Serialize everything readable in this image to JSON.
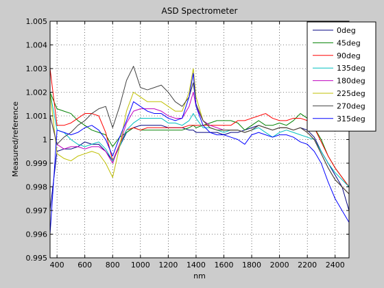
{
  "chart_data": {
    "type": "line",
    "title": "ASD Spectrometer",
    "xlabel": "nm",
    "ylabel": "Measured/reference",
    "xlim": [
      350,
      2500
    ],
    "ylim": [
      0.995,
      1.005
    ],
    "grid": true,
    "grid_style": "dotted",
    "legend_position": "top-right",
    "x_ticks": [
      400,
      600,
      800,
      1000,
      1200,
      1400,
      1600,
      1800,
      2000,
      2200,
      2400
    ],
    "y_ticks": [
      0.995,
      0.996,
      0.997,
      0.998,
      0.999,
      1,
      1.001,
      1.002,
      1.003,
      1.004,
      1.005
    ],
    "y_tick_labels": [
      "0.995",
      "0.996",
      "0.997",
      "0.998",
      "0.999",
      "1",
      "1.001",
      "1.002",
      "1.003",
      "1.004",
      "1.005"
    ],
    "series": [
      {
        "name": "0deg",
        "color": "#000080",
        "x": [
          350,
          400,
          450,
          500,
          550,
          600,
          650,
          700,
          750,
          800,
          850,
          900,
          950,
          1000,
          1050,
          1100,
          1150,
          1200,
          1250,
          1300,
          1350,
          1380,
          1400,
          1450,
          1500,
          1550,
          1600,
          1650,
          1700,
          1750,
          1800,
          1850,
          1900,
          1950,
          2000,
          2050,
          2100,
          2150,
          2200,
          2250,
          2300,
          2350,
          2400,
          2450,
          2500
        ],
        "values": [
          0.997,
          0.9995,
          0.9996,
          0.9996,
          0.9997,
          0.9999,
          0.9998,
          0.9998,
          0.9995,
          0.9991,
          0.9997,
          1.0003,
          1.0005,
          1.0006,
          1.0006,
          1.0006,
          1.0006,
          1.0005,
          1.0005,
          1.0005,
          1.0004,
          1.0004,
          1.0003,
          1.0003,
          1.0003,
          1.0003,
          1.0002,
          1.0003,
          1.0003,
          1.0004,
          1.0005,
          1.0006,
          1.0005,
          1.0004,
          1.0005,
          1.0005,
          1.0004,
          1.0005,
          1.0004,
          1.0001,
          0.9995,
          0.999,
          0.9985,
          0.998,
          0.997
        ]
      },
      {
        "name": "45deg",
        "color": "#008000",
        "x": [
          350,
          400,
          450,
          500,
          550,
          600,
          650,
          700,
          750,
          800,
          850,
          900,
          950,
          1000,
          1050,
          1100,
          1150,
          1200,
          1250,
          1300,
          1350,
          1380,
          1400,
          1450,
          1500,
          1550,
          1600,
          1650,
          1700,
          1750,
          1800,
          1850,
          1900,
          1950,
          2000,
          2050,
          2100,
          2150,
          2200,
          2250,
          2300,
          2350,
          2400,
          2450,
          2500
        ],
        "values": [
          1.002,
          1.0013,
          1.0012,
          1.0011,
          1.0008,
          1.0006,
          1.0004,
          1.0003,
          1.0002,
          0.9997,
          1.0001,
          1.0003,
          1.0005,
          1.0004,
          1.0004,
          1.0004,
          1.0004,
          1.0004,
          1.0004,
          1.0004,
          1.0005,
          1.0006,
          1.0005,
          1.0006,
          1.0007,
          1.0008,
          1.0008,
          1.0008,
          1.0007,
          1.0004,
          1.0006,
          1.0008,
          1.0006,
          1.0006,
          1.0007,
          1.0006,
          1.0008,
          1.0011,
          1.0009,
          1.0005,
          1.0,
          0.9993,
          0.9988,
          0.9984,
          0.998
        ]
      },
      {
        "name": "90deg",
        "color": "#ff0000",
        "x": [
          350,
          400,
          450,
          500,
          550,
          600,
          650,
          700,
          750,
          800,
          850,
          900,
          950,
          1000,
          1050,
          1100,
          1150,
          1200,
          1250,
          1300,
          1350,
          1380,
          1400,
          1450,
          1500,
          1550,
          1600,
          1650,
          1700,
          1750,
          1800,
          1850,
          1900,
          1950,
          2000,
          2050,
          2100,
          2150,
          2200,
          2250,
          2300,
          2350,
          2400,
          2450,
          2500
        ],
        "values": [
          1.003,
          1.0006,
          1.0006,
          1.0007,
          1.0009,
          1.0011,
          1.0011,
          1.001,
          1.0003,
          0.9991,
          0.9998,
          1.0004,
          1.0005,
          1.0004,
          1.0005,
          1.0005,
          1.0005,
          1.0005,
          1.0005,
          1.0005,
          1.0006,
          1.0006,
          1.0006,
          1.0006,
          1.0006,
          1.0006,
          1.0006,
          1.0006,
          1.0008,
          1.0008,
          1.0009,
          1.001,
          1.0011,
          1.0009,
          1.0008,
          1.0008,
          1.0009,
          1.0009,
          1.0008,
          1.0005,
          0.9999,
          0.9993,
          0.9988,
          0.9984,
          0.998
        ]
      },
      {
        "name": "135deg",
        "color": "#00bfbf",
        "x": [
          350,
          400,
          450,
          500,
          550,
          600,
          650,
          700,
          750,
          800,
          850,
          900,
          950,
          1000,
          1050,
          1100,
          1150,
          1200,
          1250,
          1300,
          1350,
          1380,
          1400,
          1450,
          1500,
          1550,
          1600,
          1650,
          1700,
          1750,
          1800,
          1850,
          1900,
          1950,
          2000,
          2050,
          2100,
          2150,
          2200,
          2250,
          2300,
          2350,
          2400,
          2450,
          2500
        ],
        "values": [
          1.002,
          1.0004,
          1.0003,
          1.0,
          0.9998,
          0.9997,
          0.9998,
          0.9999,
          0.9996,
          0.9991,
          0.9997,
          1.0004,
          1.0007,
          1.0009,
          1.0009,
          1.0009,
          1.0009,
          1.0007,
          1.0007,
          1.0006,
          1.0008,
          1.0011,
          1.0009,
          1.0005,
          1.0005,
          1.0004,
          1.0003,
          1.0004,
          1.0004,
          1.0003,
          1.0004,
          1.0005,
          1.0003,
          1.0001,
          1.0003,
          1.0004,
          1.0003,
          1.0002,
          1.0001,
          1.0,
          0.9995,
          0.999,
          0.9986,
          0.9983,
          0.998
        ]
      },
      {
        "name": "180deg",
        "color": "#bf00bf",
        "x": [
          350,
          400,
          450,
          500,
          550,
          600,
          650,
          700,
          750,
          800,
          850,
          900,
          950,
          1000,
          1050,
          1100,
          1150,
          1200,
          1250,
          1300,
          1350,
          1380,
          1400,
          1450,
          1500,
          1550,
          1600,
          1650,
          1700,
          1750,
          1800,
          1850,
          1900,
          1950,
          2000,
          2050,
          2100,
          2150,
          2200,
          2250,
          2300,
          2350,
          2400,
          2450,
          2500
        ],
        "values": [
          1.001,
          0.9998,
          0.9996,
          0.9997,
          0.9997,
          0.9996,
          0.9997,
          0.9997,
          0.9995,
          0.999,
          0.9998,
          1.0007,
          1.0012,
          1.0013,
          1.0013,
          1.0013,
          1.0012,
          1.001,
          1.0009,
          1.0009,
          1.0014,
          1.002,
          1.0014,
          1.0008,
          1.0006,
          1.0005,
          1.0004,
          1.0004,
          1.0004,
          1.0003,
          1.0004,
          1.0006,
          1.0005,
          1.0004,
          1.0005,
          1.0005,
          1.0004,
          1.0005,
          1.0003,
          1.0,
          0.9994,
          0.9988,
          0.9983,
          0.998,
          0.9977
        ]
      },
      {
        "name": "225deg",
        "color": "#bfbf00",
        "x": [
          350,
          400,
          450,
          500,
          550,
          600,
          650,
          700,
          750,
          800,
          850,
          900,
          950,
          1000,
          1050,
          1100,
          1150,
          1200,
          1250,
          1300,
          1350,
          1380,
          1400,
          1450,
          1500,
          1550,
          1600,
          1650,
          1700,
          1750,
          1800,
          1850,
          1900,
          1950,
          2000,
          2050,
          2100,
          2150,
          2200,
          2250,
          2300,
          2350,
          2400,
          2450,
          2500
        ],
        "values": [
          1.002,
          0.9994,
          0.9992,
          0.9991,
          0.9993,
          0.9994,
          0.9995,
          0.9994,
          0.999,
          0.9984,
          0.9997,
          1.0012,
          1.002,
          1.0018,
          1.0016,
          1.0016,
          1.0016,
          1.0014,
          1.0012,
          1.0012,
          1.002,
          1.003,
          1.0018,
          1.0008,
          1.0005,
          1.0004,
          1.0004,
          1.0004,
          1.0004,
          1.0003,
          1.0004,
          1.0006,
          1.0005,
          1.0004,
          1.0005,
          1.0005,
          1.0004,
          1.0005,
          1.0003,
          1.0,
          0.9994,
          0.9988,
          0.9983,
          0.998,
          0.9977
        ]
      },
      {
        "name": "270deg",
        "color": "#404040",
        "x": [
          350,
          400,
          450,
          500,
          550,
          600,
          650,
          700,
          750,
          800,
          850,
          900,
          950,
          1000,
          1050,
          1100,
          1150,
          1200,
          1250,
          1300,
          1350,
          1380,
          1400,
          1450,
          1500,
          1550,
          1600,
          1650,
          1700,
          1750,
          1800,
          1850,
          1900,
          1950,
          2000,
          2050,
          2100,
          2150,
          2200,
          2250,
          2300,
          2350,
          2400,
          2450,
          2500
        ],
        "values": [
          1.001,
          0.9998,
          1.0001,
          1.0003,
          1.0006,
          1.0008,
          1.0011,
          1.0013,
          1.0014,
          1.0005,
          1.0014,
          1.0025,
          1.0031,
          1.0022,
          1.0021,
          1.0022,
          1.0023,
          1.002,
          1.0016,
          1.0014,
          1.0018,
          1.0024,
          1.0015,
          1.0008,
          1.0005,
          1.0004,
          1.0004,
          1.0004,
          1.0004,
          1.0003,
          1.0004,
          1.0006,
          1.0005,
          1.0004,
          1.0005,
          1.0005,
          1.0004,
          1.0005,
          1.0003,
          1.0,
          0.9994,
          0.9988,
          0.9983,
          0.998,
          0.9977
        ]
      },
      {
        "name": "315deg",
        "color": "#0000ff",
        "x": [
          350,
          400,
          450,
          500,
          550,
          600,
          650,
          700,
          750,
          800,
          850,
          900,
          950,
          1000,
          1050,
          1100,
          1150,
          1200,
          1250,
          1300,
          1350,
          1380,
          1400,
          1450,
          1500,
          1550,
          1600,
          1650,
          1700,
          1750,
          1800,
          1850,
          1900,
          1950,
          2000,
          2050,
          2100,
          2150,
          2200,
          2250,
          2300,
          2350,
          2400,
          2450,
          2500
        ],
        "values": [
          0.996,
          1.0004,
          1.0003,
          1.0002,
          1.0003,
          1.0005,
          1.0006,
          1.0004,
          1.0,
          0.9993,
          1.0001,
          1.0008,
          1.0016,
          1.0014,
          1.0012,
          1.0011,
          1.0011,
          1.0009,
          1.0008,
          1.0009,
          1.0018,
          1.0028,
          1.0014,
          1.0006,
          1.0003,
          1.0002,
          1.0002,
          1.0001,
          1.0,
          0.9998,
          1.0002,
          1.0003,
          1.0002,
          1.0001,
          1.0002,
          1.0002,
          1.0001,
          0.9999,
          0.9998,
          0.9995,
          0.999,
          0.9982,
          0.9975,
          0.997,
          0.9965
        ]
      }
    ]
  }
}
